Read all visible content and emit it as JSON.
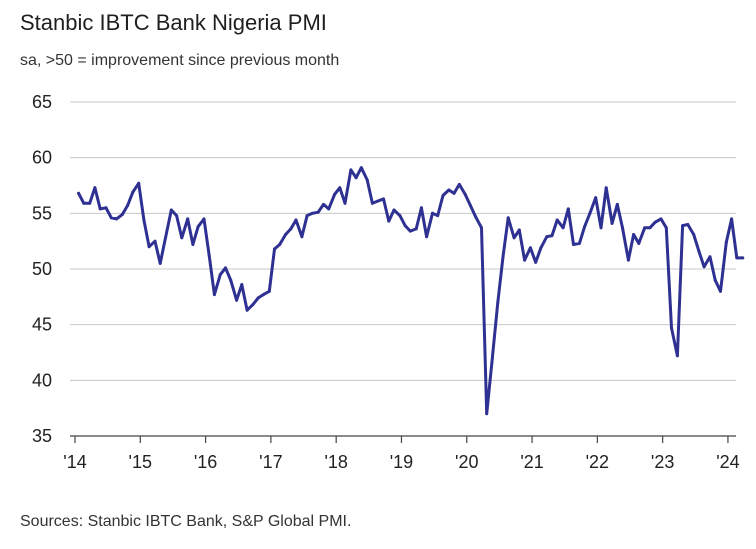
{
  "chart_data": {
    "type": "line",
    "title": "Stanbic IBTC Bank Nigeria PMI",
    "subtitle": "sa, >50 = improvement since previous month",
    "source": "Sources: Stanbic IBTC Bank, S&P Global PMI.",
    "ylim": [
      35,
      65
    ],
    "yticks": [
      35,
      40,
      45,
      50,
      55,
      60,
      65
    ],
    "xlim": [
      2014.0,
      2024.2
    ],
    "xticks": [
      2014,
      2015,
      2016,
      2017,
      2018,
      2019,
      2020,
      2021,
      2022,
      2023,
      2024
    ],
    "xtick_labels": [
      "'14",
      "'15",
      "'16",
      "'17",
      "'18",
      "'19",
      "'20",
      "'21",
      "'22",
      "'23",
      "'24"
    ],
    "grid": true,
    "line_color": "#2e3192",
    "series": [
      {
        "x": [
          2014.04,
          2014.12,
          2014.21,
          2014.29,
          2014.37,
          2014.46,
          2014.54,
          2014.62,
          2014.71,
          2014.79,
          2014.87,
          2014.96,
          2015.04,
          2015.12,
          2015.21,
          2015.29,
          2015.37,
          2015.46,
          2015.54,
          2015.62,
          2015.71,
          2015.79,
          2015.87,
          2015.96,
          2016.04,
          2016.12,
          2016.21,
          2016.29,
          2016.37,
          2016.46,
          2016.54,
          2016.62,
          2016.71,
          2016.79,
          2016.87,
          2016.96,
          2017.04,
          2017.12,
          2017.21,
          2017.29,
          2017.37,
          2017.46,
          2017.54,
          2017.62,
          2017.71,
          2017.79,
          2017.87,
          2017.96,
          2018.04,
          2018.12,
          2018.21,
          2018.29,
          2018.37,
          2018.46,
          2018.54,
          2018.62,
          2018.71,
          2018.79,
          2018.87,
          2018.96,
          2019.04,
          2019.12,
          2019.21,
          2019.29,
          2019.37,
          2019.46,
          2019.54,
          2019.62,
          2019.71,
          2019.79,
          2019.87,
          2019.96,
          2020.04,
          2020.12,
          2020.21,
          2020.29,
          2020.37,
          2020.46,
          2020.54,
          2020.62,
          2020.71,
          2020.79,
          2020.87,
          2020.96,
          2021.04,
          2021.12,
          2021.21,
          2021.29,
          2021.37,
          2021.46,
          2021.54,
          2021.62,
          2021.71,
          2021.79,
          2021.87,
          2021.96,
          2022.04,
          2022.12,
          2022.21,
          2022.29,
          2022.37,
          2022.46,
          2022.54,
          2022.62,
          2022.71,
          2022.79,
          2022.87,
          2022.96,
          2023.04,
          2023.12,
          2023.21,
          2023.29,
          2023.37,
          2023.46,
          2023.54,
          2023.62,
          2023.71,
          2023.79,
          2023.87,
          2023.96,
          2024.04,
          2024.12,
          2024.21
        ],
        "y": [
          56.8,
          55.9,
          55.9,
          57.3,
          55.4,
          55.5,
          54.6,
          54.5,
          54.9,
          55.7,
          56.9,
          57.7,
          54.4,
          52.0,
          52.5,
          50.5,
          52.8,
          55.3,
          54.8,
          52.8,
          54.5,
          52.2,
          53.8,
          54.5,
          51.2,
          47.7,
          49.5,
          50.1,
          49.0,
          47.2,
          48.6,
          46.3,
          46.8,
          47.4,
          47.7,
          48.0,
          51.8,
          52.2,
          53.1,
          53.6,
          54.4,
          52.9,
          54.8,
          55.0,
          55.1,
          55.8,
          55.4,
          56.7,
          57.3,
          55.9,
          58.9,
          58.2,
          59.1,
          58.0,
          55.9,
          56.1,
          56.3,
          54.3,
          55.3,
          54.8,
          53.9,
          53.4,
          53.6,
          55.5,
          52.9,
          55.0,
          54.8,
          56.6,
          57.1,
          56.8,
          57.6,
          56.7,
          55.7,
          54.7,
          53.7,
          37.0,
          41.6,
          47.0,
          51.1,
          54.6,
          52.8,
          53.5,
          50.8,
          51.9,
          50.6,
          51.9,
          52.9,
          53.0,
          54.4,
          53.7,
          55.4,
          52.2,
          52.3,
          53.8,
          55.0,
          56.4,
          53.7,
          57.3,
          54.1,
          55.8,
          53.7,
          50.8,
          53.1,
          52.3,
          53.7,
          53.7,
          54.2,
          54.5,
          53.7,
          44.7,
          42.2,
          53.9,
          54.0,
          53.1,
          51.6,
          50.2,
          51.1,
          49.0,
          48.0,
          52.4,
          54.5,
          51.0,
          51.0
        ]
      }
    ]
  }
}
